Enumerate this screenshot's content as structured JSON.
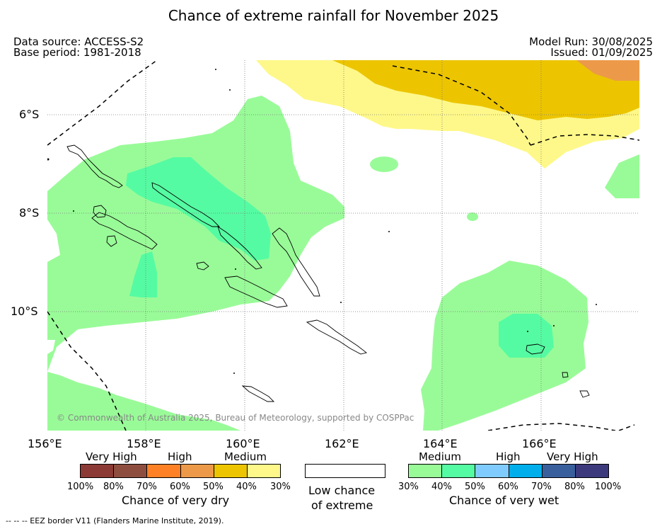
{
  "title": "Chance of extreme rainfall for November 2025",
  "meta": {
    "data_source": "Data source: ACCESS-S2",
    "base_period": "Base period: 1981-2018",
    "model_run": "Model Run: 30/08/2025",
    "issued": "Issued: 01/09/2025"
  },
  "axes": {
    "lat_labels": [
      "6°S",
      "8°S",
      "10°S"
    ],
    "lon_labels": [
      "156°E",
      "158°E",
      "160°E",
      "162°E",
      "164°E",
      "166°E"
    ]
  },
  "copyright": "© Commonwealth of Australia 2025, Bureau of Meteorology, supported by COSPPac",
  "legend": {
    "dry": {
      "categories": [
        "Very High",
        "High",
        "Medium"
      ],
      "ticks": [
        "100%",
        "80%",
        "70%",
        "60%",
        "50%",
        "40%",
        "30%"
      ],
      "colors": [
        "#8b3a35",
        "#8d4e3f",
        "#ff8125",
        "#ec9a4a",
        "#ecc500",
        "#fef88a"
      ],
      "caption": "Chance of very dry"
    },
    "low": {
      "caption_line1": "Low chance",
      "caption_line2": "of extreme",
      "color": "#ffffff"
    },
    "wet": {
      "categories": [
        "Medium",
        "High",
        "Very High"
      ],
      "ticks": [
        "30%",
        "40%",
        "50%",
        "60%",
        "70%",
        "80%",
        "100%"
      ],
      "colors": [
        "#99fb98",
        "#55fba2",
        "#80cbfd",
        "#00aeeb",
        "#3a5f9d",
        "#3c3a7c"
      ],
      "caption": "Chance of very wet"
    }
  },
  "footer": "--  --  -- EEZ border V11 (Flanders Marine Institute, 2019)."
}
